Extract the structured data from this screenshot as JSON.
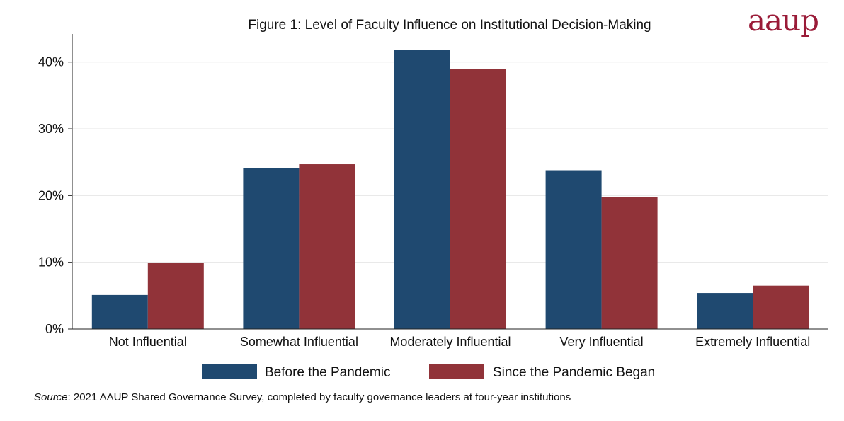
{
  "logo_text": "aaup",
  "source": {
    "label": "Source",
    "text": ": 2021 AAUP Shared Governance Survey, completed by faculty governance leaders at four-year institutions"
  },
  "colors": {
    "series_1": "#1f4970",
    "series_2": "#913339",
    "gridline": "#e6e6e6",
    "axis": "#222222",
    "logo": "#9a1b38"
  },
  "chart_data": {
    "type": "bar",
    "title": "Figure 1: Level of Faculty Influence on Institutional Decision-Making",
    "xlabel": "",
    "ylabel": "",
    "categories": [
      "Not Influential",
      "Somewhat Influential",
      "Moderately Influential",
      "Very Influential",
      "Extremely Influential"
    ],
    "series": [
      {
        "name": "Before the Pandemic",
        "values": [
          5.1,
          24.1,
          41.8,
          23.8,
          5.4
        ]
      },
      {
        "name": "Since the Pandemic Began",
        "values": [
          9.9,
          24.7,
          39.0,
          19.8,
          6.5
        ]
      }
    ],
    "yticks": [
      0,
      10,
      20,
      30,
      40
    ],
    "ytick_labels": [
      "0%",
      "10%",
      "20%",
      "30%",
      "40%"
    ],
    "ylim": [
      0,
      44
    ],
    "grid": true,
    "legend": "bottom"
  }
}
